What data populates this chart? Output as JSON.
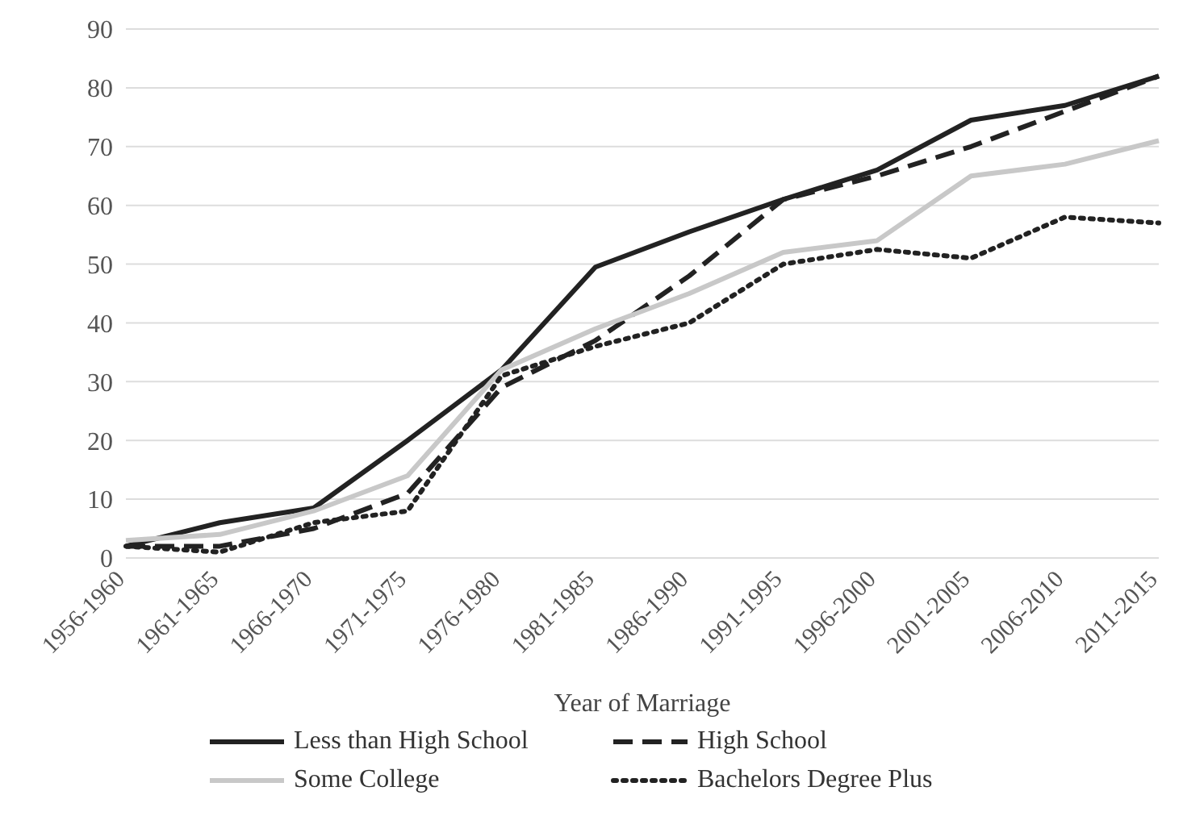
{
  "chart_data": {
    "type": "line",
    "xlabel": "Year of Marriage",
    "categories": [
      "1956-1960",
      "1961-1965",
      "1966-1970",
      "1971-1975",
      "1976-1980",
      "1981-1985",
      "1986-1990",
      "1991-1995",
      "1996-2000",
      "2001-2005",
      "2006-2010",
      "2011-2015"
    ],
    "series": [
      {
        "name": "Less than High School",
        "color": "#222222",
        "line_style": "solid",
        "values": [
          2,
          6,
          8.5,
          20,
          32,
          49.5,
          55.5,
          61,
          66,
          74.5,
          77,
          82
        ]
      },
      {
        "name": "High School",
        "color": "#222222",
        "line_style": "dashed",
        "values": [
          2,
          2,
          5,
          11,
          29,
          37,
          48,
          61,
          65,
          70,
          76,
          82
        ]
      },
      {
        "name": "Some College",
        "color": "#c8c8c8",
        "line_style": "solid",
        "values": [
          3,
          4,
          8,
          14,
          32,
          39,
          45,
          52,
          54,
          65,
          67,
          71
        ]
      },
      {
        "name": "Bachelors Degree Plus",
        "color": "#222222",
        "line_style": "dotted",
        "values": [
          2,
          1,
          6,
          8,
          31,
          36,
          40,
          50,
          52.5,
          51,
          58,
          57
        ]
      }
    ],
    "ylim": [
      0,
      90
    ],
    "yticks": [
      0,
      10,
      20,
      30,
      40,
      50,
      60,
      70,
      80,
      90
    ],
    "grid": "y",
    "legend": "bottom",
    "marker": "none"
  }
}
